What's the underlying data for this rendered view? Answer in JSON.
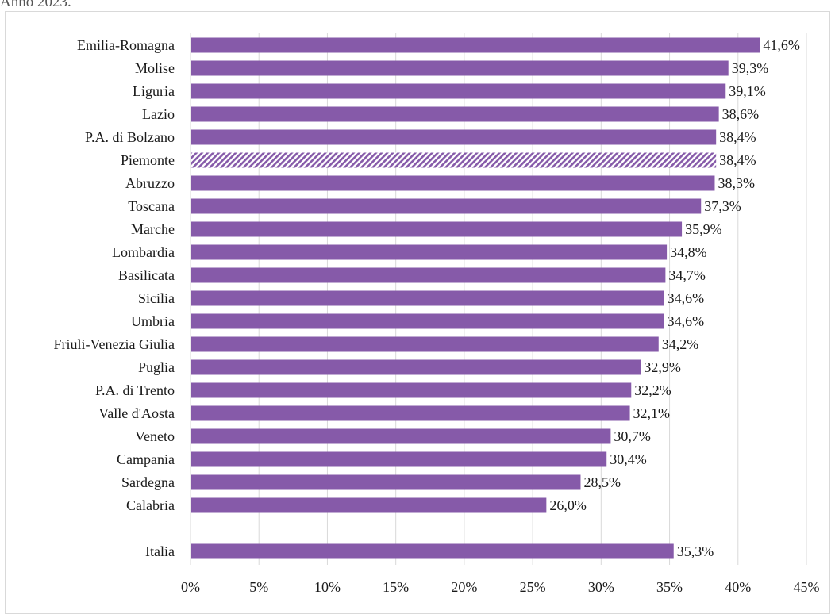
{
  "header": {
    "text": "Anno 2023."
  },
  "colors": {
    "bar": "#865aa9",
    "grid": "#d9d9d9",
    "text": "#1a1a1a"
  },
  "chart_data": {
    "type": "bar",
    "orientation": "horizontal",
    "categories": [
      "Emilia-Romagna",
      "Molise",
      "Liguria",
      "Lazio",
      "P.A. di Bolzano",
      "Piemonte",
      "Abruzzo",
      "Toscana",
      "Marche",
      "Lombardia",
      "Basilicata",
      "Sicilia",
      "Umbria",
      "Friuli-Venezia Giulia",
      "Puglia",
      "P.A. di Trento",
      "Valle d'Aosta",
      "Veneto",
      "Campania",
      "Sardegna",
      "Calabria",
      "",
      "Italia"
    ],
    "values": [
      41.6,
      39.3,
      39.1,
      38.6,
      38.4,
      38.4,
      38.3,
      37.3,
      35.9,
      34.8,
      34.7,
      34.6,
      34.6,
      34.2,
      32.9,
      32.2,
      32.1,
      30.7,
      30.4,
      28.5,
      26.0,
      null,
      35.3
    ],
    "value_labels": [
      "41,6%",
      "39,3%",
      "39,1%",
      "38,6%",
      "38,4%",
      "38,4%",
      "38,3%",
      "37,3%",
      "35,9%",
      "34,8%",
      "34,7%",
      "34,6%",
      "34,6%",
      "34,2%",
      "32,9%",
      "32,2%",
      "32,1%",
      "30,7%",
      "30,4%",
      "28,5%",
      "26,0%",
      "",
      "35,3%"
    ],
    "highlight": [
      "Piemonte"
    ],
    "xlim": [
      0,
      45
    ],
    "x_ticks": [
      0,
      5,
      10,
      15,
      20,
      25,
      30,
      35,
      40,
      45
    ],
    "x_tick_labels": [
      "0%",
      "5%",
      "10%",
      "15%",
      "20%",
      "25%",
      "30%",
      "35%",
      "40%",
      "45%"
    ],
    "grid": true,
    "title": "",
    "xlabel": "",
    "ylabel": ""
  }
}
